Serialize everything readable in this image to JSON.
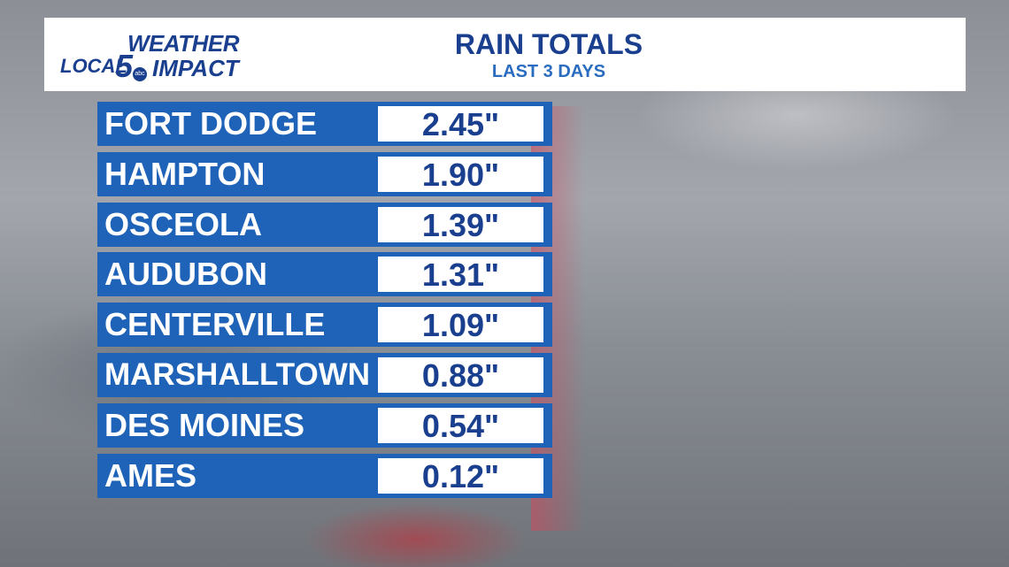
{
  "logo": {
    "weather": "WEATHER",
    "local": "LOCAL",
    "five": "5",
    "abc": "abc",
    "impact": "IMPACT"
  },
  "chart_data": {
    "type": "table",
    "title": "RAIN TOTALS",
    "subtitle": "LAST 3 DAYS",
    "rows": [
      {
        "city": "FORT DODGE",
        "value_label": "2.45\"",
        "value": 2.45
      },
      {
        "city": "HAMPTON",
        "value_label": "1.90\"",
        "value": 1.9
      },
      {
        "city": "OSCEOLA",
        "value_label": "1.39\"",
        "value": 1.39
      },
      {
        "city": "AUDUBON",
        "value_label": "1.31\"",
        "value": 1.31
      },
      {
        "city": "CENTERVILLE",
        "value_label": "1.09\"",
        "value": 1.09
      },
      {
        "city": "MARSHALLTOWN",
        "value_label": "0.88\"",
        "value": 0.88
      },
      {
        "city": "DES MOINES",
        "value_label": "0.54\"",
        "value": 0.54
      },
      {
        "city": "AMES",
        "value_label": "0.12\"",
        "value": 0.12
      }
    ]
  },
  "colors": {
    "brand_blue": "#1a3f8f",
    "row_blue": "#1f63b8",
    "subtitle_blue": "#2a6cc0"
  }
}
